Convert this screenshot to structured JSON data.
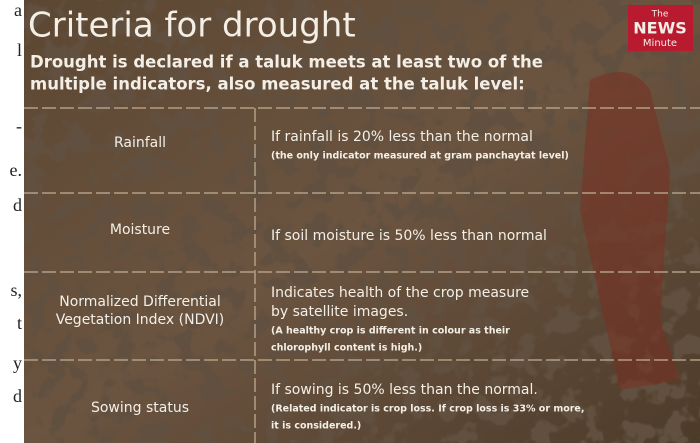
{
  "margin_fragments": [
    "a",
    "l",
    "-",
    "e.",
    "d",
    "s,",
    "t",
    "y",
    "d"
  ],
  "header": {
    "title": "Criteria for drought",
    "subtitle": [
      "Drought is declared if a taluk meets at least two of the",
      "multiple indicators, also measured at the taluk level:"
    ]
  },
  "logo": {
    "top": "The",
    "middle": "NEWS",
    "bottom": "Minute"
  },
  "table": {
    "rows": [
      {
        "label": [
          "Rainfall"
        ],
        "description": [
          "If rainfall is 20% less than the normal"
        ],
        "note": [
          "(the only indicator measured at gram panchaytat level)"
        ]
      },
      {
        "label": [
          "Moisture"
        ],
        "description": [
          "If soil moisture is 50% less than normal"
        ],
        "note": []
      },
      {
        "label": [
          "Normalized Differential",
          "Vegetation Index (NDVI)"
        ],
        "description": [
          "Indicates health of the crop measure",
          "by satellite images."
        ],
        "note": [
          "(A healthy crop is different in colour as their",
          "chlorophyll content is high.)"
        ]
      },
      {
        "label": [
          "Sowing status"
        ],
        "description": [
          "If sowing is 50% less than the normal."
        ],
        "note": [
          "(Related indicator is crop loss. If crop loss is 33% or more,",
          "it is considered.)"
        ]
      }
    ]
  }
}
